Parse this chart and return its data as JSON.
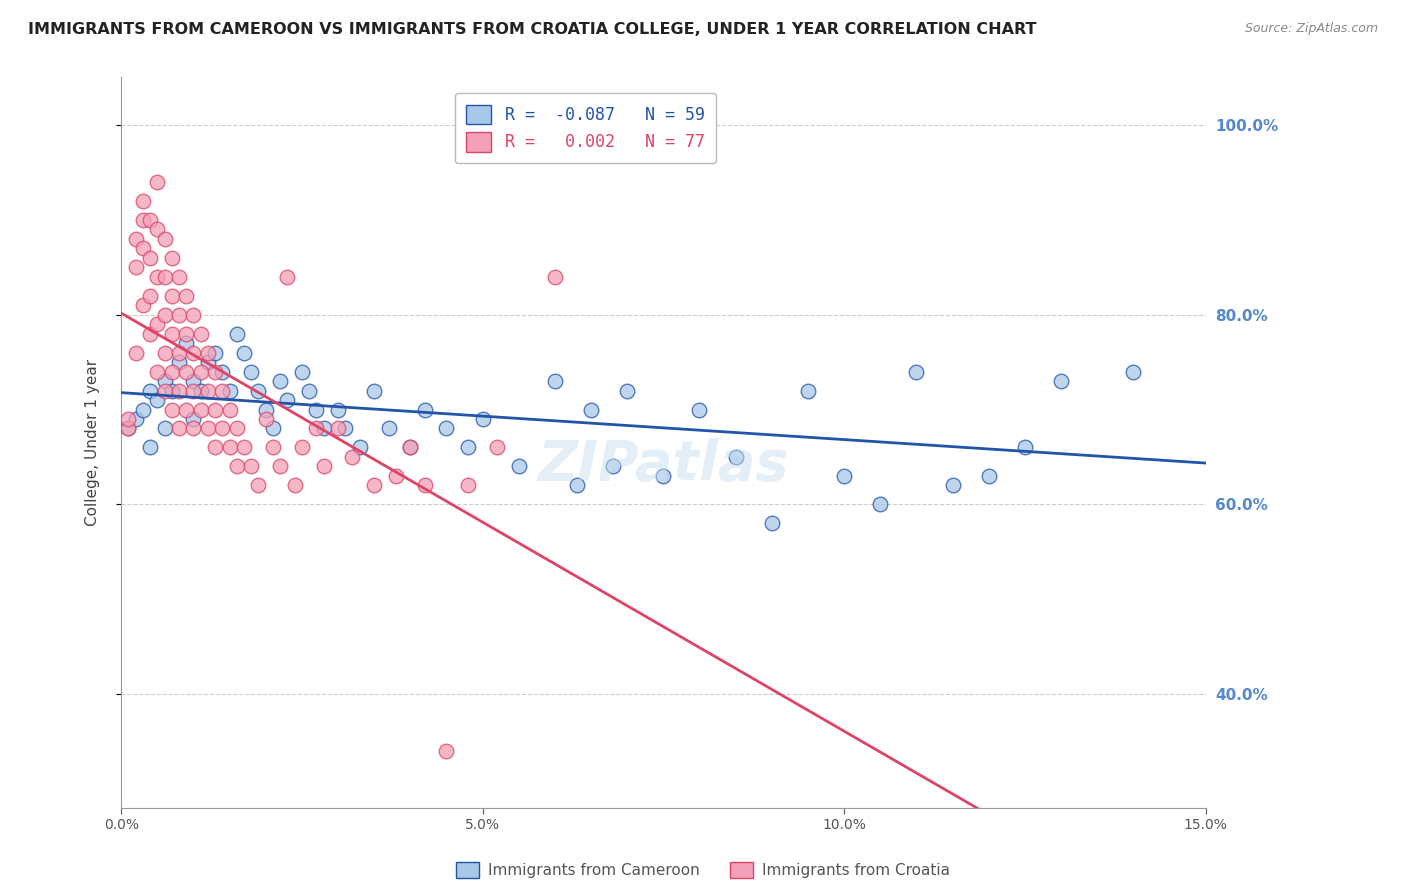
{
  "title": "IMMIGRANTS FROM CAMEROON VS IMMIGRANTS FROM CROATIA COLLEGE, UNDER 1 YEAR CORRELATION CHART",
  "source": "Source: ZipAtlas.com",
  "ylabel": "College, Under 1 year",
  "legend_label_blue": "Immigrants from Cameroon",
  "legend_label_pink": "Immigrants from Croatia",
  "R_blue": -0.087,
  "N_blue": 59,
  "R_pink": 0.002,
  "N_pink": 77,
  "xlim": [
    0.0,
    0.15
  ],
  "ylim": [
    0.28,
    1.05
  ],
  "yticks": [
    0.4,
    0.6,
    0.8,
    1.0
  ],
  "ytick_labels": [
    "40.0%",
    "60.0%",
    "80.0%",
    "100.0%"
  ],
  "xticks": [
    0.0,
    0.05,
    0.1,
    0.15
  ],
  "xtick_labels": [
    "0.0%",
    "5.0%",
    "10.0%",
    "15.0%"
  ],
  "color_blue": "#a8c8e8",
  "color_pink": "#f4a0b8",
  "line_color_blue": "#2255aa",
  "line_color_pink": "#dd4466",
  "background": "#ffffff",
  "grid_color": "#cccccc",
  "axis_color": "#999999",
  "right_tick_color": "#5588cc",
  "title_fontsize": 11.5,
  "label_fontsize": 11,
  "scatter_blue_x": [
    0.001,
    0.002,
    0.003,
    0.004,
    0.004,
    0.005,
    0.006,
    0.006,
    0.007,
    0.008,
    0.009,
    0.01,
    0.01,
    0.011,
    0.012,
    0.013,
    0.014,
    0.015,
    0.016,
    0.017,
    0.018,
    0.019,
    0.02,
    0.021,
    0.022,
    0.023,
    0.025,
    0.026,
    0.027,
    0.028,
    0.03,
    0.031,
    0.033,
    0.035,
    0.037,
    0.04,
    0.042,
    0.045,
    0.048,
    0.05,
    0.055,
    0.06,
    0.063,
    0.065,
    0.068,
    0.07,
    0.075,
    0.08,
    0.085,
    0.09,
    0.095,
    0.1,
    0.105,
    0.11,
    0.115,
    0.12,
    0.125,
    0.13,
    0.14
  ],
  "scatter_blue_y": [
    0.68,
    0.69,
    0.7,
    0.72,
    0.66,
    0.71,
    0.73,
    0.68,
    0.72,
    0.75,
    0.77,
    0.73,
    0.69,
    0.72,
    0.75,
    0.76,
    0.74,
    0.72,
    0.78,
    0.76,
    0.74,
    0.72,
    0.7,
    0.68,
    0.73,
    0.71,
    0.74,
    0.72,
    0.7,
    0.68,
    0.7,
    0.68,
    0.66,
    0.72,
    0.68,
    0.66,
    0.7,
    0.68,
    0.66,
    0.69,
    0.64,
    0.73,
    0.62,
    0.7,
    0.64,
    0.72,
    0.63,
    0.7,
    0.65,
    0.58,
    0.72,
    0.63,
    0.6,
    0.74,
    0.62,
    0.63,
    0.66,
    0.73,
    0.74
  ],
  "scatter_pink_x": [
    0.001,
    0.001,
    0.002,
    0.002,
    0.002,
    0.003,
    0.003,
    0.003,
    0.003,
    0.004,
    0.004,
    0.004,
    0.004,
    0.005,
    0.005,
    0.005,
    0.005,
    0.005,
    0.006,
    0.006,
    0.006,
    0.006,
    0.006,
    0.007,
    0.007,
    0.007,
    0.007,
    0.007,
    0.008,
    0.008,
    0.008,
    0.008,
    0.008,
    0.009,
    0.009,
    0.009,
    0.009,
    0.01,
    0.01,
    0.01,
    0.01,
    0.011,
    0.011,
    0.011,
    0.012,
    0.012,
    0.012,
    0.013,
    0.013,
    0.013,
    0.014,
    0.014,
    0.015,
    0.015,
    0.016,
    0.016,
    0.017,
    0.018,
    0.019,
    0.02,
    0.021,
    0.022,
    0.023,
    0.024,
    0.025,
    0.027,
    0.028,
    0.03,
    0.032,
    0.035,
    0.038,
    0.04,
    0.042,
    0.045,
    0.048,
    0.052,
    0.06
  ],
  "scatter_pink_y": [
    0.68,
    0.69,
    0.88,
    0.85,
    0.76,
    0.92,
    0.9,
    0.87,
    0.81,
    0.9,
    0.86,
    0.82,
    0.78,
    0.94,
    0.89,
    0.84,
    0.79,
    0.74,
    0.88,
    0.84,
    0.8,
    0.76,
    0.72,
    0.86,
    0.82,
    0.78,
    0.74,
    0.7,
    0.84,
    0.8,
    0.76,
    0.72,
    0.68,
    0.82,
    0.78,
    0.74,
    0.7,
    0.8,
    0.76,
    0.72,
    0.68,
    0.78,
    0.74,
    0.7,
    0.76,
    0.72,
    0.68,
    0.74,
    0.7,
    0.66,
    0.72,
    0.68,
    0.7,
    0.66,
    0.68,
    0.64,
    0.66,
    0.64,
    0.62,
    0.69,
    0.66,
    0.64,
    0.84,
    0.62,
    0.66,
    0.68,
    0.64,
    0.68,
    0.65,
    0.62,
    0.63,
    0.66,
    0.62,
    0.34,
    0.62,
    0.66,
    0.84
  ]
}
